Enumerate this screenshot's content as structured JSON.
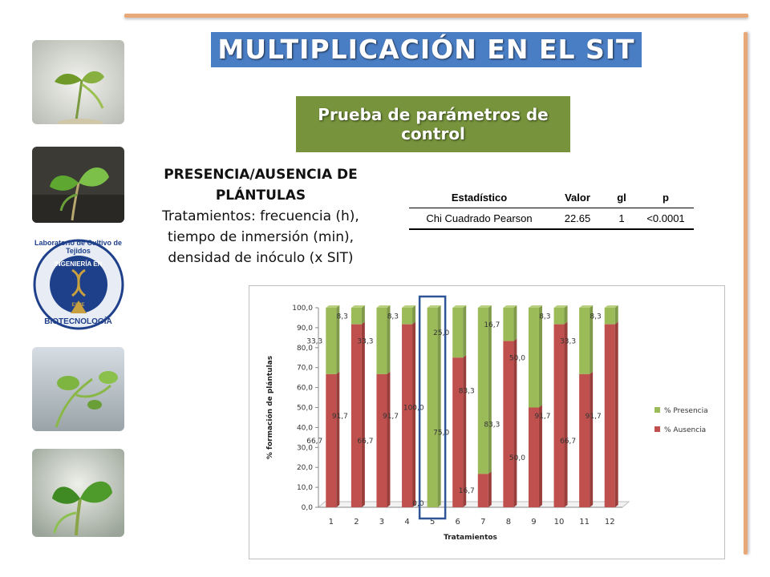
{
  "slide": {
    "title": "MULTIPLICACIÓN EN EL SIT",
    "subtitle": "Prueba de parámetros de control",
    "heading": "PRESENCIA/AUSENCIA DE PLÁNTULAS",
    "description": "Tratamientos: frecuencia (h), tiempo de inmersión (min), densidad de inóculo (x SIT)",
    "colors": {
      "title_bg": "#4a7ec4",
      "subtitle_bg": "#77933c",
      "accent_line": "#e8a878"
    }
  },
  "logo": {
    "top_text": "Laboratorio de Cultivo de Tejidos",
    "inner_text": "INGENIERÍA EN",
    "bottom_text": "BIOTECNOLOGÍA",
    "seal_text": "ESPE"
  },
  "stats_table": {
    "headers": [
      "Estadístico",
      "Valor",
      "gl",
      "p"
    ],
    "rows": [
      [
        "Chi Cuadrado Pearson",
        "22.65",
        "1",
        "<0.0001"
      ]
    ]
  },
  "chart_data": {
    "type": "bar",
    "stacked": true,
    "categories": [
      "1",
      "2",
      "3",
      "4",
      "5",
      "6",
      "7",
      "8",
      "9",
      "10",
      "11",
      "12"
    ],
    "series": [
      {
        "name": "% Ausencia",
        "color": "#c0504d",
        "values": [
          66.7,
          91.7,
          66.7,
          91.7,
          0.0,
          75.0,
          16.7,
          83.3,
          50.0,
          91.7,
          66.7,
          91.7
        ],
        "labels": [
          "66,7",
          "91,7",
          "66,7",
          "91,7",
          "0,0",
          "75,0",
          "16,7",
          "83,3",
          "50,0",
          "91,7",
          "66,7",
          "91,7"
        ]
      },
      {
        "name": "% Presencia",
        "color": "#9bbb59",
        "values": [
          33.3,
          8.3,
          33.3,
          8.3,
          100.0,
          25.0,
          83.3,
          16.7,
          50.0,
          8.3,
          33.3,
          8.3
        ],
        "labels": [
          "33,3",
          "8,3",
          "33,3",
          "8,3",
          "100,0",
          "25,0",
          "83,3",
          "16,7",
          "50,0",
          "8,3",
          "33,3",
          "8,3"
        ]
      }
    ],
    "highlighted_category": "5",
    "xlabel": "Tratamientos",
    "ylabel": "% formación de plántulas",
    "ylim": [
      0,
      100
    ],
    "yticks": [
      "0,0",
      "10,0",
      "20,0",
      "30,0",
      "40,0",
      "50,0",
      "60,0",
      "70,0",
      "80,0",
      "90,0",
      "100,0"
    ],
    "legend_position": "right",
    "grid": false
  }
}
